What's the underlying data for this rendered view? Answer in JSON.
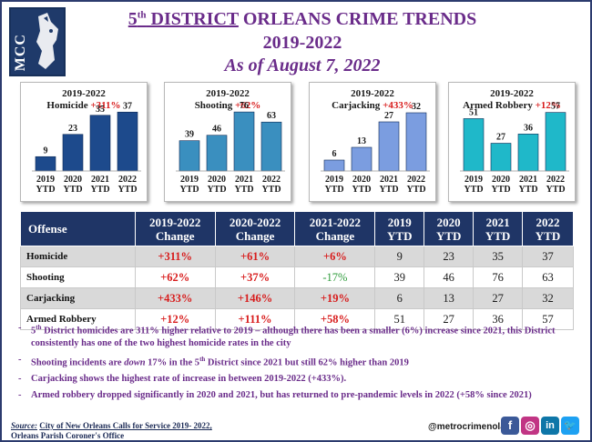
{
  "header": {
    "district_num": "5",
    "district_sup": "th",
    "district_word": " DISTRICT",
    "title_rest": " ORLEANS CRIME TRENDS",
    "years": "2019-2022",
    "as_of": "As of August 7, 2022"
  },
  "logo": {
    "text": "MCC",
    "icon": "dog-head-icon"
  },
  "colors": {
    "homicide_bar": "#1d4a8c",
    "shooting_bar": "#3a8fbf",
    "carjacking_bar": "#7b9de0",
    "robbery_bar": "#1fb8c9",
    "header_purple": "#6a2c8a",
    "table_header": "#1f3566",
    "increase_red": "#d81c1c",
    "decrease_green": "#2d9b3a"
  },
  "chart_data": [
    {
      "type": "bar",
      "title": "2019-2022",
      "subtitle": "Homicide",
      "change": "+311%",
      "categories": [
        "2019 YTD",
        "2020 YTD",
        "2021 YTD",
        "2022 YTD"
      ],
      "values": [
        9,
        23,
        35,
        37
      ],
      "ylim": [
        0,
        40
      ]
    },
    {
      "type": "bar",
      "title": "2019-2022",
      "subtitle": "Shooting",
      "change": "+62%",
      "categories": [
        "2019 YTD",
        "2020 YTD",
        "2021 YTD",
        "2022 YTD"
      ],
      "values": [
        39,
        46,
        76,
        63
      ],
      "ylim": [
        0,
        82
      ]
    },
    {
      "type": "bar",
      "title": "2019-2022",
      "subtitle": "Carjacking",
      "change": "+433%",
      "categories": [
        "2019 YTD",
        "2020 YTD",
        "2021 YTD",
        "2022 YTD"
      ],
      "values": [
        6,
        13,
        27,
        32
      ],
      "ylim": [
        0,
        35
      ]
    },
    {
      "type": "bar",
      "title": "2019-2022",
      "subtitle": "Armed Robbery",
      "change": "+12%",
      "categories": [
        "2019 YTD",
        "2020 YTD",
        "2021 YTD",
        "2022 YTD"
      ],
      "values": [
        51,
        27,
        36,
        57
      ],
      "ylim": [
        0,
        62
      ]
    }
  ],
  "table": {
    "headers": [
      "Offense",
      "2019-2022 Change",
      "2020-2022 Change",
      "2021-2022 Change",
      "2019 YTD",
      "2020 YTD",
      "2021 YTD",
      "2022 YTD"
    ],
    "rows": [
      [
        "Homicide",
        "+311%",
        "+61%",
        "+6%",
        "9",
        "23",
        "35",
        "37"
      ],
      [
        "Shooting",
        "+62%",
        "+37%",
        "-17%",
        "39",
        "46",
        "76",
        "63"
      ],
      [
        "Carjacking",
        "+433%",
        "+146%",
        "+19%",
        "6",
        "13",
        "27",
        "32"
      ],
      [
        "Armed Robbery",
        "+12%",
        "+111%",
        "+58%",
        "51",
        "27",
        "36",
        "57"
      ]
    ]
  },
  "bullets": {
    "b1_a": "5",
    "b1_sup": "th",
    "b1_b": " District homicides are 311% higher relative to 2019 – although there has been a smaller (6%) increase since 2021, this District consistently has one of the two highest homicide rates in the city",
    "b2_a": "Shooting incidents are ",
    "b2_em": "down",
    "b2_b": " 17% in the 5",
    "b2_sup": "th",
    "b2_c": " District since 2021 but still 62% higher than 2019",
    "b3": "Carjacking shows the highest rate of increase in between 2019-2022 (+433%).",
    "b4": "Armed robbery dropped significantly in 2020 and 2021, but has returned to pre-pandemic levels in 2022 (+58% since 2021)"
  },
  "footer": {
    "source_label": "Source:",
    "source_text": "City of New Orleans Calls for Service 2019- 2022,",
    "source_text2": "Orleans Parish Coroner's Office",
    "handle": "@metrocrimenola",
    "social": [
      {
        "name": "facebook-icon",
        "glyph": "f",
        "color": "#3b5998"
      },
      {
        "name": "instagram-icon",
        "glyph": "◎",
        "color": "#c13584"
      },
      {
        "name": "linkedin-icon",
        "glyph": "in",
        "color": "#0e76a8"
      },
      {
        "name": "twitter-icon",
        "glyph": "🐦",
        "color": "#1da1f2"
      }
    ]
  }
}
